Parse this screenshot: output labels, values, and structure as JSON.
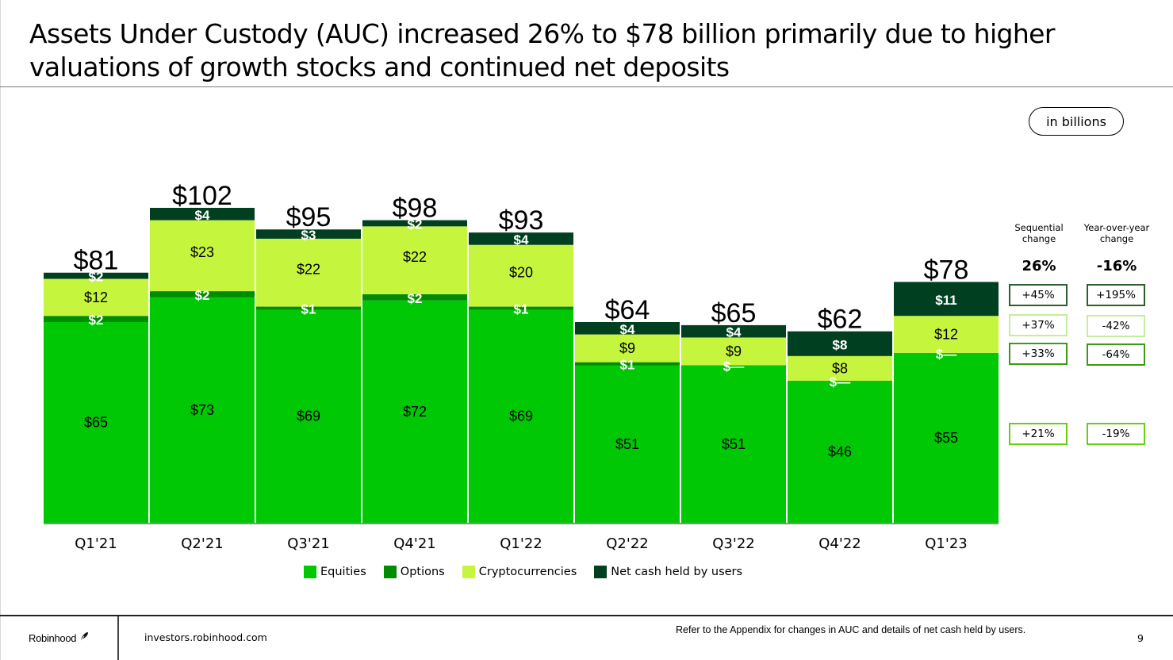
{
  "slide": {
    "title": "Assets Under Custody (AUC) increased 26% to $78 billion primarily due to higher valuations of growth stocks and continued net deposits",
    "units_label": "in billions",
    "footer": {
      "logo_text": "Robinhood",
      "url": "investors.robinhood.com",
      "note": "Refer to the Appendix for changes in AUC and details of net cash held by users.",
      "page_number": "9"
    }
  },
  "colors": {
    "equities": "#00c805",
    "options": "#008c00",
    "cryptocurrencies": "#c6f53e",
    "net_cash": "#004020"
  },
  "chart_data": {
    "type": "bar",
    "stacked": true,
    "title": "Assets Under Custody (AUC)",
    "xlabel": "",
    "ylabel": "",
    "units": "in billions (USD)",
    "ylim": [
      0,
      102
    ],
    "grid": false,
    "legend_position": "bottom",
    "categories": [
      "Q1'21",
      "Q2'21",
      "Q3'21",
      "Q4'21",
      "Q1'22",
      "Q2'22",
      "Q3'22",
      "Q4'22",
      "Q1'23"
    ],
    "totals": [
      81,
      102,
      95,
      98,
      93,
      64,
      65,
      62,
      78
    ],
    "total_labels": [
      "$81",
      "$102",
      "$95",
      "$98",
      "$93",
      "$64",
      "$65",
      "$62",
      "$78"
    ],
    "series": [
      {
        "name": "Equities",
        "key": "equities",
        "values": [
          65,
          73,
          69,
          72,
          69,
          51,
          51,
          46,
          55
        ],
        "labels": [
          "$65",
          "$73",
          "$69",
          "$72",
          "$69",
          "$51",
          "$51",
          "$46",
          "$55"
        ]
      },
      {
        "name": "Options",
        "key": "options",
        "values": [
          2,
          2,
          1,
          2,
          1,
          1,
          0,
          0,
          0
        ],
        "labels": [
          "$2",
          "$2",
          "$1",
          "$2",
          "$1",
          "$1",
          "$—",
          "$—",
          "$—"
        ]
      },
      {
        "name": "Cryptocurrencies",
        "key": "cryptocurrencies",
        "values": [
          12,
          23,
          22,
          22,
          20,
          9,
          9,
          8,
          12
        ],
        "labels": [
          "$12",
          "$23",
          "$22",
          "$22",
          "$20",
          "$9",
          "$9",
          "$8",
          "$12"
        ]
      },
      {
        "name": "Net cash held by users",
        "key": "net_cash",
        "values": [
          2,
          4,
          3,
          2,
          4,
          4,
          4,
          8,
          11
        ],
        "labels": [
          "$2",
          "$4",
          "$3",
          "$2",
          "$4",
          "$4",
          "$4",
          "$8",
          "$11"
        ]
      }
    ]
  },
  "changes": {
    "sequential": {
      "header": "Sequential change",
      "header_line1": "Sequential",
      "header_line2": "change",
      "total": "26%",
      "net_cash": "+45%",
      "cryptocurrencies": "+37%",
      "options": "+33%",
      "equities": "+21%"
    },
    "year_over_year": {
      "header": "Year-over-year change",
      "header_line1": "Year-over-year",
      "header_line2": "change",
      "total": "-16%",
      "net_cash": "+195%",
      "cryptocurrencies": "-42%",
      "options": "-64%",
      "equities": "-19%"
    },
    "border_colors": {
      "net_cash": "#2d5e2d",
      "cryptocurrencies": "#c5ee9c",
      "options": "#3c9a14",
      "equities": "#64d010"
    }
  }
}
